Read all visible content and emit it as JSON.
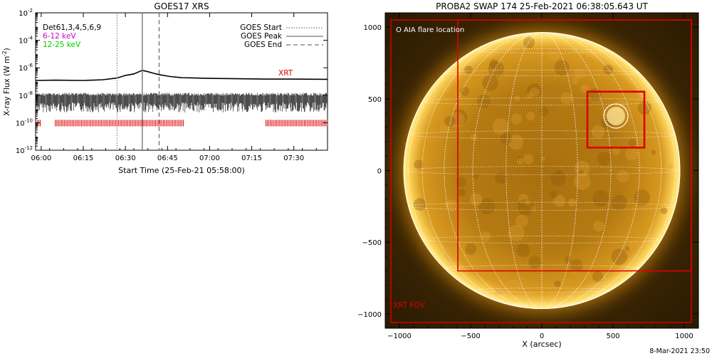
{
  "chart_data": [
    {
      "type": "line",
      "title": "GOES17 XRS",
      "xlabel": "Start Time (25-Feb-21 05:58:00)",
      "ylabel": "X-ray Flux (W m",
      "ylabel_superscript": "-2",
      "ylabel_close": ")",
      "yscale": "log",
      "ylim": [
        1e-12,
        0.01
      ],
      "xlim": [
        "05:58",
        "07:42"
      ],
      "x_ticks": [
        "06:00",
        "06:15",
        "06:30",
        "06:45",
        "07:00",
        "07:15",
        "07:30"
      ],
      "y_ticks": [
        {
          "base": "10",
          "exp": "-12"
        },
        {
          "base": "10",
          "exp": "-10"
        },
        {
          "base": "10",
          "exp": "-8"
        },
        {
          "base": "10",
          "exp": "-6"
        },
        {
          "base": "10",
          "exp": "-4"
        },
        {
          "base": "10",
          "exp": "-2"
        }
      ],
      "legend_left": [
        {
          "label": "Det61,3,4,5,6,9",
          "color": "#000000"
        },
        {
          "label": "6-12 keV",
          "color": "#cc00cc"
        },
        {
          "label": "12-25 keV",
          "color": "#00cc00"
        }
      ],
      "legend_right": [
        {
          "label": "GOES Start",
          "style": "dotted"
        },
        {
          "label": "GOES Peak",
          "style": "solid"
        },
        {
          "label": "GOES End",
          "style": "dashed"
        }
      ],
      "xrt_label": "XRT",
      "xrt_color": "#dd0000",
      "goes_start": "06:27",
      "goes_peak": "06:36",
      "goes_end": "06:42",
      "series": [
        {
          "name": "GOES",
          "x": [
            "05:58",
            "06:05",
            "06:15",
            "06:22",
            "06:27",
            "06:30",
            "06:33",
            "06:36",
            "06:38",
            "06:40",
            "06:42",
            "06:46",
            "06:50",
            "07:00",
            "07:10",
            "07:20",
            "07:30",
            "07:42"
          ],
          "values": [
            1.2e-07,
            1.25e-07,
            1.2e-07,
            1.35e-07,
            1.8e-07,
            2.8e-07,
            3.6e-07,
            6.5e-07,
            5.2e-07,
            4e-07,
            3.2e-07,
            2.3e-07,
            1.9e-07,
            1.7e-07,
            1.6e-07,
            1.5e-07,
            1.5e-07,
            1.45e-07
          ]
        }
      ],
      "xrt_intervals": [
        [
          "05:58",
          "06:00"
        ],
        [
          "06:05",
          "06:51"
        ],
        [
          "07:20",
          "07:42"
        ]
      ]
    },
    {
      "type": "image",
      "title": "PROBA2 SWAP 174 25-Feb-2021 06:38:05.643 UT",
      "xlabel": "X (arcsec)",
      "xlim": [
        -1100,
        1100
      ],
      "ylim": [
        -1100,
        1100
      ],
      "x_ticks": [
        "−1000",
        "−500",
        "0",
        "500",
        "1000"
      ],
      "y_ticks": [
        "−1000",
        "−500",
        "0",
        "500",
        "1000"
      ],
      "legend_text": "O AIA flare location",
      "fov_label": "XRT FOV",
      "fov_color": "#dd0000",
      "solar_radius": 970,
      "flare_location": [
        520,
        380
      ],
      "xrt_fov_large": [
        -1060,
        -1060,
        1050,
        1050
      ],
      "xrt_fov_medium": [
        -590,
        -700,
        1050,
        1050
      ],
      "xrt_fov_small": [
        320,
        160,
        720,
        550
      ],
      "timestamp": "8-Mar-2021 23:50"
    }
  ]
}
